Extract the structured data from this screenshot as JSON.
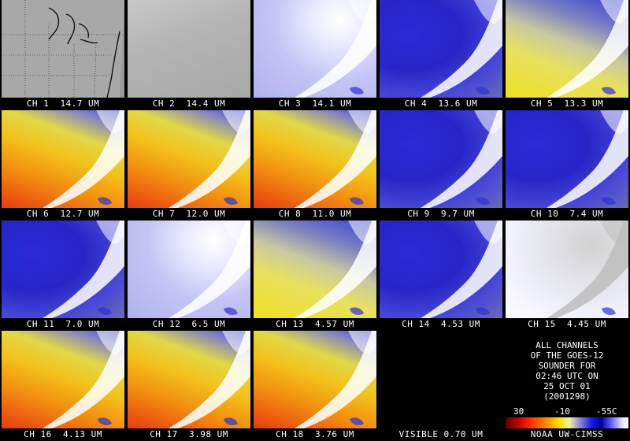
{
  "tiles": [
    {
      "label": "CH 1  14.7 UM",
      "style": "map"
    },
    {
      "label": "CH 2  14.4 UM",
      "style": "gray"
    },
    {
      "label": "CH 3  14.1 UM",
      "style": "pale"
    },
    {
      "label": "CH 4  13.6 UM",
      "style": "blue"
    },
    {
      "label": "CH 5  13.3 UM",
      "style": "blueyellow"
    },
    {
      "label": "CH 6  12.7 UM",
      "style": "warm"
    },
    {
      "label": "CH 7  12.0 UM",
      "style": "warm"
    },
    {
      "label": "CH 8  11.0 UM",
      "style": "warm"
    },
    {
      "label": "CH 9  9.7 UM",
      "style": "blue"
    },
    {
      "label": "CH 10  7.4 UM",
      "style": "blue"
    },
    {
      "label": "CH 11  7.0 UM",
      "style": "blue"
    },
    {
      "label": "CH 12  6.5 UM",
      "style": "pale"
    },
    {
      "label": "CH 13  4.57 UM",
      "style": "blueyellow"
    },
    {
      "label": "CH 14  4.53 UM",
      "style": "blue"
    },
    {
      "label": "CH 15  4.45 UM",
      "style": "white"
    },
    {
      "label": "CH 16  4.13 UM",
      "style": "warm"
    },
    {
      "label": "CH 17  3.98 UM",
      "style": "warm"
    },
    {
      "label": "CH 18  3.76 UM",
      "style": "warm"
    },
    {
      "label": "VISIBLE 0.70 UM",
      "style": "black"
    }
  ],
  "info": {
    "lines": [
      "ALL CHANNELS",
      "OF THE GOES-12",
      "SOUNDER FOR",
      "02:46 UTC ON",
      "25 OCT 01",
      "(2001298)"
    ],
    "scale": {
      "low": "30",
      "mid": "-10",
      "high": "-55C"
    },
    "credit": "NOAA UW-CIMSS"
  }
}
